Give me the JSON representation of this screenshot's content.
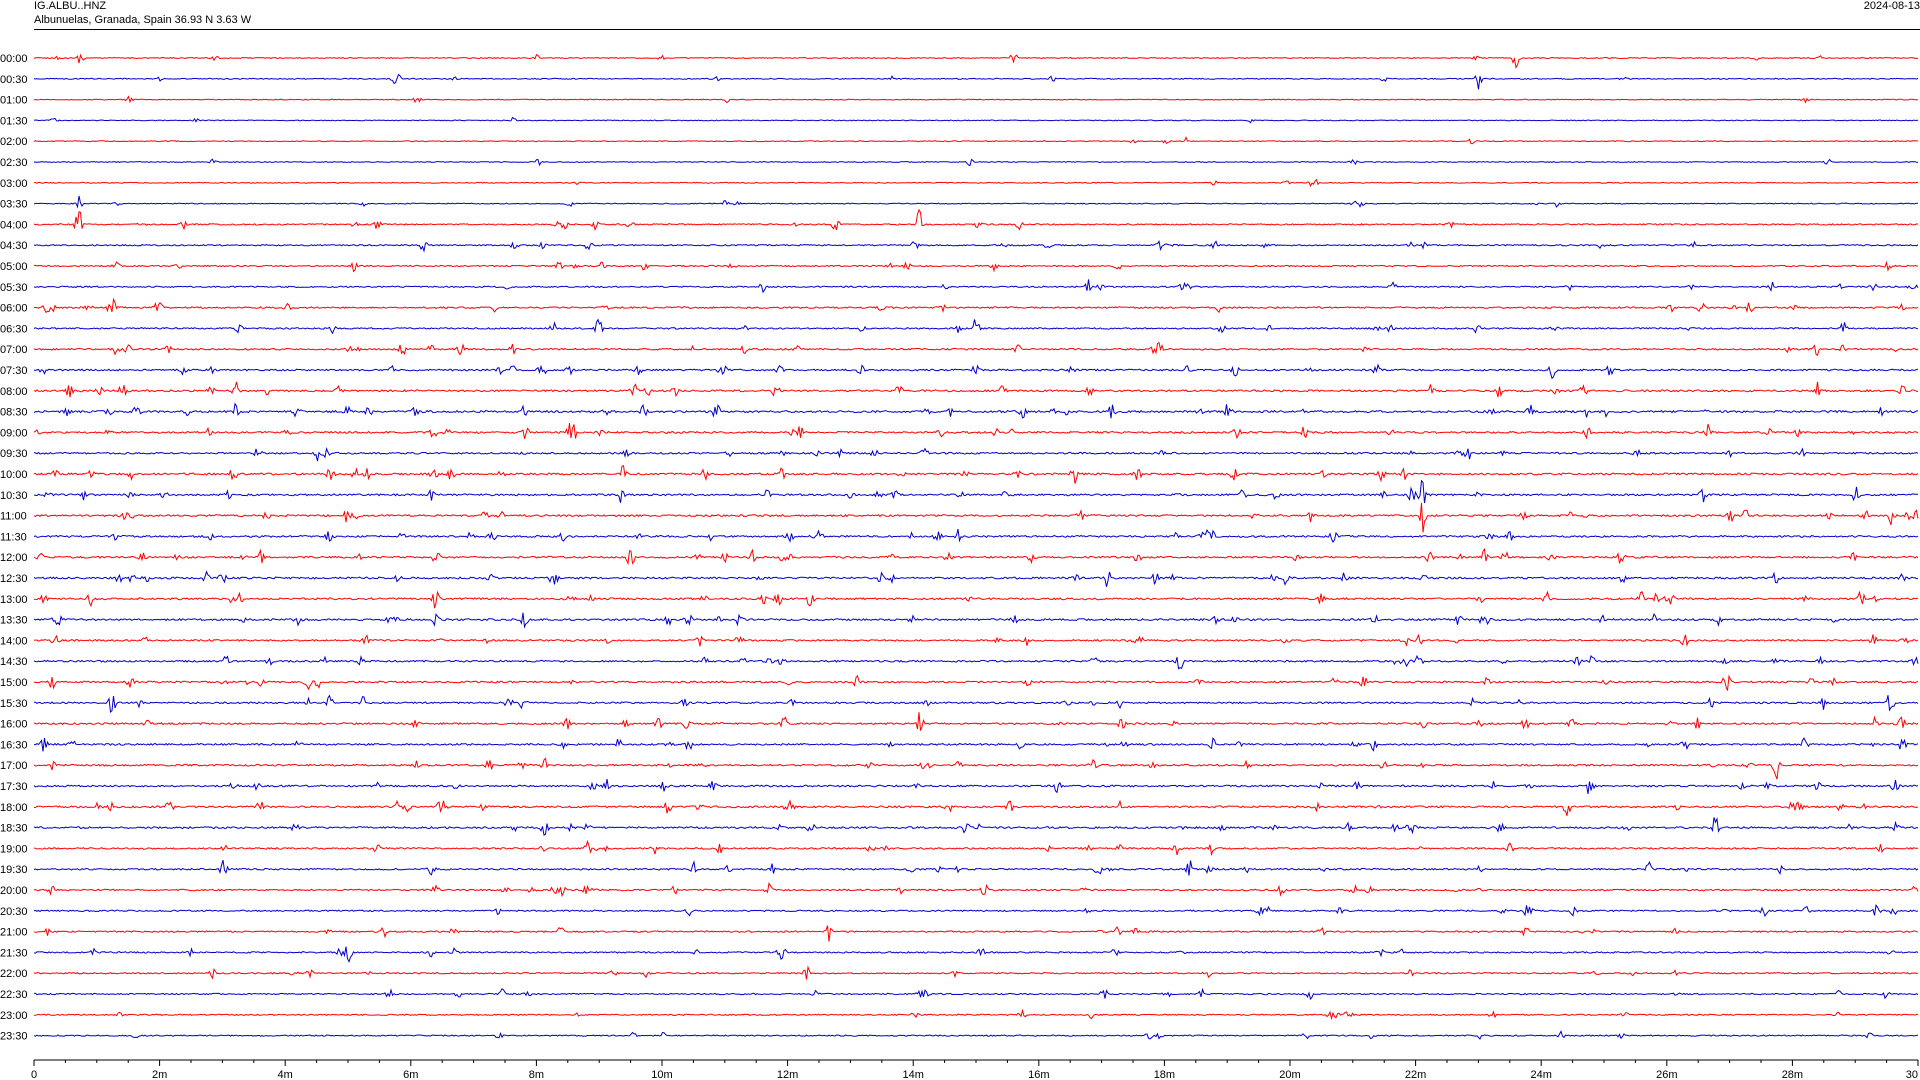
{
  "header": {
    "station": "IG.ALBU..HNZ",
    "location": "Albunuelas, Granada, Spain  36.93 N 3.63 W",
    "date": "2024-08-13"
  },
  "chart_data": {
    "type": "line",
    "title": "",
    "xlabel": "",
    "ylabel": "",
    "xlim": [
      0,
      30
    ],
    "x_tick_labels": [
      "0",
      "2m",
      "4m",
      "6m",
      "8m",
      "10m",
      "12m",
      "14m",
      "16m",
      "18m",
      "20m",
      "22m",
      "24m",
      "26m",
      "28m",
      "30"
    ],
    "x_tick_values": [
      0,
      2,
      4,
      6,
      8,
      10,
      12,
      14,
      16,
      18,
      20,
      22,
      24,
      26,
      28,
      30
    ],
    "row_labels": [
      "00:00",
      "00:30",
      "01:00",
      "01:30",
      "02:00",
      "02:30",
      "03:00",
      "03:30",
      "04:00",
      "04:30",
      "05:00",
      "05:30",
      "06:00",
      "06:30",
      "07:00",
      "07:30",
      "08:00",
      "08:30",
      "09:00",
      "09:30",
      "10:00",
      "10:30",
      "11:00",
      "11:30",
      "12:00",
      "12:30",
      "13:00",
      "13:30",
      "14:00",
      "14:30",
      "15:00",
      "15:30",
      "16:00",
      "16:30",
      "17:00",
      "17:30",
      "18:00",
      "18:30",
      "19:00",
      "19:30",
      "20:00",
      "20:30",
      "21:00",
      "21:30",
      "22:00",
      "22:30",
      "23:00",
      "23:30"
    ],
    "colors": {
      "even_rows": "#ff0000",
      "odd_rows": "#0000cc"
    },
    "noise_level": [
      0.3,
      0.3,
      0.2,
      0.2,
      0.2,
      0.2,
      0.2,
      0.3,
      0.6,
      0.6,
      0.6,
      0.6,
      0.8,
      0.7,
      0.8,
      0.9,
      1.0,
      1.2,
      1.0,
      0.9,
      1.1,
      1.0,
      1.0,
      1.0,
      1.0,
      1.0,
      1.0,
      1.0,
      0.9,
      0.9,
      0.9,
      0.9,
      0.9,
      0.9,
      0.9,
      0.9,
      1.0,
      1.0,
      0.8,
      0.8,
      0.8,
      0.7,
      0.7,
      0.7,
      0.6,
      0.6,
      0.5,
      0.5
    ],
    "events": [
      {
        "row": 0,
        "minute": 0.75,
        "amplitude": 2.0
      },
      {
        "row": 0,
        "minute": 15.6,
        "amplitude": 1.6
      },
      {
        "row": 0,
        "minute": 23.6,
        "amplitude": 3.0
      },
      {
        "row": 1,
        "minute": 2.0,
        "amplitude": 0.8
      },
      {
        "row": 1,
        "minute": 5.8,
        "amplitude": 1.0
      },
      {
        "row": 1,
        "minute": 23.0,
        "amplitude": 2.6
      },
      {
        "row": 5,
        "minute": 14.9,
        "amplitude": 1.0
      },
      {
        "row": 6,
        "minute": 18.8,
        "amplitude": 0.8
      },
      {
        "row": 7,
        "minute": 0.7,
        "amplitude": 3.0
      },
      {
        "row": 7,
        "minute": 11.0,
        "amplitude": 0.8
      },
      {
        "row": 7,
        "minute": 21.0,
        "amplitude": 1.0
      },
      {
        "row": 8,
        "minute": 0.7,
        "amplitude": 6.0
      },
      {
        "row": 8,
        "minute": 14.1,
        "amplitude": 4.0
      },
      {
        "row": 8,
        "minute": 15.7,
        "amplitude": 1.8
      },
      {
        "row": 9,
        "minute": 6.2,
        "amplitude": 1.6
      },
      {
        "row": 9,
        "minute": 18.8,
        "amplitude": 1.5
      },
      {
        "row": 10,
        "minute": 2.3,
        "amplitude": 1.2
      },
      {
        "row": 11,
        "minute": 11.6,
        "amplitude": 1.4
      },
      {
        "row": 11,
        "minute": 16.8,
        "amplitude": 2.0
      },
      {
        "row": 12,
        "minute": 0.2,
        "amplitude": 1.6
      },
      {
        "row": 13,
        "minute": 15.0,
        "amplitude": 3.2
      },
      {
        "row": 13,
        "minute": 9.0,
        "amplitude": 1.6
      },
      {
        "row": 14,
        "minute": 1.3,
        "amplitude": 2.0
      },
      {
        "row": 14,
        "minute": 6.8,
        "amplitude": 1.8
      },
      {
        "row": 15,
        "minute": 8.1,
        "amplitude": 2.0
      },
      {
        "row": 15,
        "minute": 25.1,
        "amplitude": 2.4
      },
      {
        "row": 17,
        "minute": 3.2,
        "amplitude": 2.4
      },
      {
        "row": 17,
        "minute": 7.8,
        "amplitude": 3.0
      },
      {
        "row": 18,
        "minute": 8.5,
        "amplitude": 3.0
      },
      {
        "row": 20,
        "minute": 10.7,
        "amplitude": 2.0
      },
      {
        "row": 21,
        "minute": 22.1,
        "amplitude": 4.0
      },
      {
        "row": 22,
        "minute": 22.1,
        "amplitude": 6.0
      },
      {
        "row": 23,
        "minute": 4.7,
        "amplitude": 2.0
      },
      {
        "row": 24,
        "minute": 9.5,
        "amplitude": 3.4
      },
      {
        "row": 24,
        "minute": 6.4,
        "amplitude": 2.2
      },
      {
        "row": 24,
        "minute": 23.1,
        "amplitude": 2.0
      },
      {
        "row": 25,
        "minute": 17.1,
        "amplitude": 3.0
      },
      {
        "row": 26,
        "minute": 6.4,
        "amplitude": 4.0
      },
      {
        "row": 26,
        "minute": 0.9,
        "amplitude": 2.0
      },
      {
        "row": 27,
        "minute": 7.8,
        "amplitude": 3.0
      },
      {
        "row": 27,
        "minute": 10.1,
        "amplitude": 1.6
      },
      {
        "row": 29,
        "minute": 21.7,
        "amplitude": 2.4
      },
      {
        "row": 30,
        "minute": 13.1,
        "amplitude": 1.6
      },
      {
        "row": 32,
        "minute": 14.1,
        "amplitude": 3.0
      },
      {
        "row": 33,
        "minute": 28.2,
        "amplitude": 2.2
      },
      {
        "row": 36,
        "minute": 3.6,
        "amplitude": 1.6
      },
      {
        "row": 36,
        "minute": 10.6,
        "amplitude": 1.6
      },
      {
        "row": 38,
        "minute": 18.2,
        "amplitude": 2.0
      },
      {
        "row": 39,
        "minute": 18.4,
        "amplitude": 3.0
      },
      {
        "row": 40,
        "minute": 6.4,
        "amplitude": 1.6
      },
      {
        "row": 42,
        "minute": 8.4,
        "amplitude": 2.0
      },
      {
        "row": 43,
        "minute": 5.0,
        "amplitude": 1.8
      },
      {
        "row": 44,
        "minute": 12.3,
        "amplitude": 1.6
      },
      {
        "row": 45,
        "minute": 20.3,
        "amplitude": 1.8
      },
      {
        "row": 46,
        "minute": 16.8,
        "amplitude": 1.6
      },
      {
        "row": 47,
        "minute": 24.3,
        "amplitude": 1.8
      }
    ]
  }
}
